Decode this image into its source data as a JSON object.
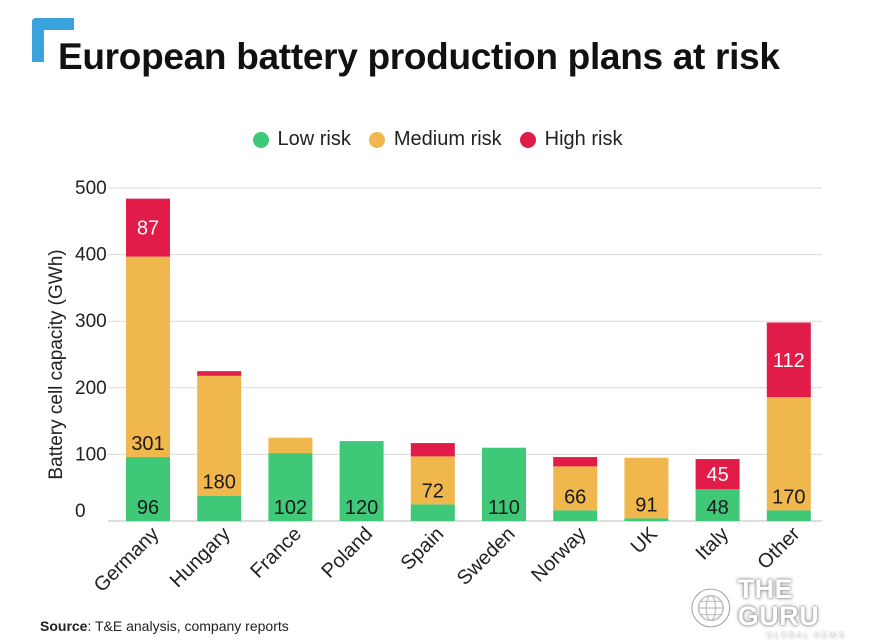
{
  "title": "European battery production plans at risk",
  "legend": [
    {
      "label": "Low risk",
      "color": "#3ec878"
    },
    {
      "label": "Medium risk",
      "color": "#f0b84c"
    },
    {
      "label": "High risk",
      "color": "#e21c48"
    }
  ],
  "source_label": "Source",
  "source_text": ": T&E analysis, company reports",
  "watermark": {
    "brand": "THE GURU",
    "sub": "GLOBAL NEWS"
  },
  "colors": {
    "accent": "#3aa2dc",
    "low": "#3ec878",
    "medium": "#f0b84c",
    "high": "#e21c48",
    "grid": "#d9d9d9"
  },
  "chart_data": {
    "type": "bar",
    "stacked": true,
    "title": "European battery production plans at risk",
    "ylabel": "Battery cell capacity (GWh)",
    "xlabel": "",
    "ylim": [
      0,
      500
    ],
    "yticks": [
      0,
      100,
      200,
      300,
      400,
      500
    ],
    "categories": [
      "Germany",
      "Hungary",
      "France",
      "Poland",
      "Spain",
      "Sweden",
      "Norway",
      "UK",
      "Italy",
      "Other"
    ],
    "series": [
      {
        "name": "Low risk",
        "color": "#3ec878",
        "values": [
          96,
          38,
          102,
          120,
          25,
          110,
          16,
          4,
          48,
          16
        ]
      },
      {
        "name": "Medium risk",
        "color": "#f0b84c",
        "values": [
          301,
          180,
          23,
          0,
          72,
          0,
          66,
          91,
          0,
          170
        ]
      },
      {
        "name": "High risk",
        "color": "#e21c48",
        "values": [
          87,
          7,
          0,
          0,
          20,
          0,
          14,
          0,
          45,
          112
        ]
      }
    ],
    "labels": [
      {
        "category": "Germany",
        "series": "Low risk",
        "text": "96"
      },
      {
        "category": "Germany",
        "series": "Medium risk",
        "text": "301"
      },
      {
        "category": "Germany",
        "series": "High risk",
        "text": "87"
      },
      {
        "category": "Hungary",
        "series": "Medium risk",
        "text": "180"
      },
      {
        "category": "France",
        "series": "Low risk",
        "text": "102"
      },
      {
        "category": "Poland",
        "series": "Low risk",
        "text": "120"
      },
      {
        "category": "Spain",
        "series": "Medium risk",
        "text": "72"
      },
      {
        "category": "Sweden",
        "series": "Low risk",
        "text": "110"
      },
      {
        "category": "Norway",
        "series": "Medium risk",
        "text": "66"
      },
      {
        "category": "UK",
        "series": "Medium risk",
        "text": "91"
      },
      {
        "category": "Italy",
        "series": "Low risk",
        "text": "48"
      },
      {
        "category": "Italy",
        "series": "High risk",
        "text": "45"
      },
      {
        "category": "Other",
        "series": "Medium risk",
        "text": "170"
      },
      {
        "category": "Other",
        "series": "High risk",
        "text": "112"
      }
    ]
  }
}
